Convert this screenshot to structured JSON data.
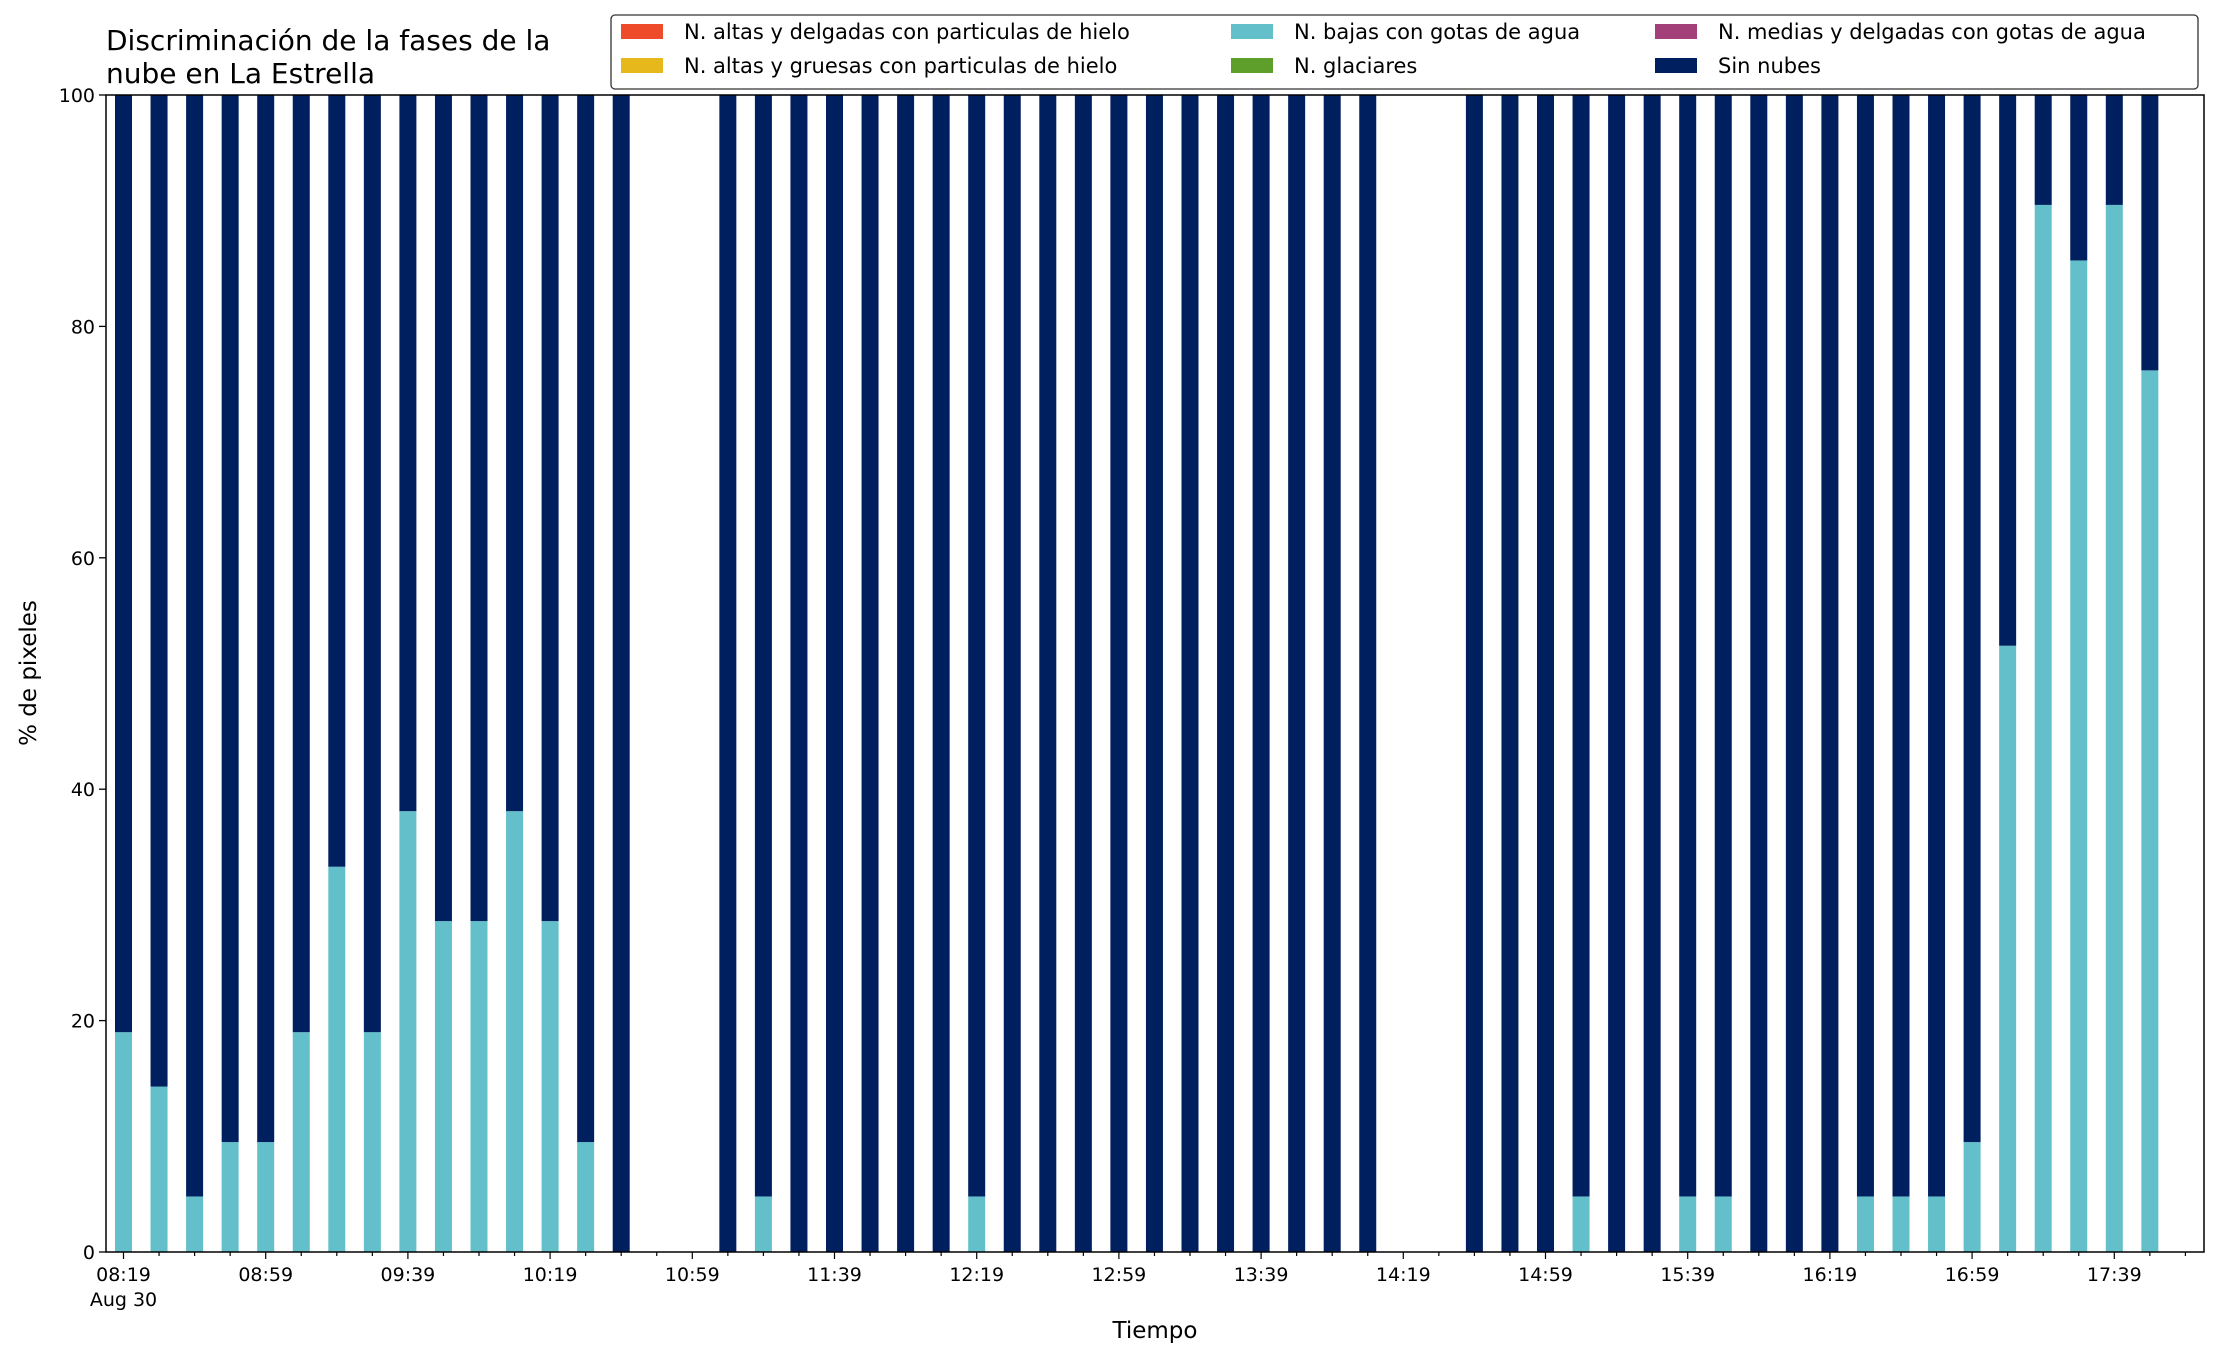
{
  "chart_data": {
    "type": "bar",
    "stacked": true,
    "title_lines": [
      "Discriminación de la fases de la",
      "nube en La Estrella"
    ],
    "xlabel": "Tiempo",
    "ylabel": "% de pixeles",
    "ylim": [
      0,
      100
    ],
    "y_ticks": [
      0,
      20,
      40,
      60,
      80,
      100
    ],
    "x_start": "08:19",
    "x_step_minutes": 10,
    "x_count": 58,
    "x_tick_labels": [
      "08:19",
      "08:59",
      "09:39",
      "10:19",
      "10:59",
      "11:39",
      "12:19",
      "12:59",
      "13:39",
      "14:19",
      "14:59",
      "15:39",
      "16:19",
      "16:59",
      "17:39"
    ],
    "x_tick_sublabel": "Aug 30",
    "grid": false,
    "legend_position": "top-right",
    "legend_columns": 3,
    "series": [
      {
        "name": "N. altas y delgadas con particulas de hielo",
        "color": "#ee4b2b",
        "values": [
          0,
          0,
          0,
          0,
          0,
          0,
          0,
          0,
          0,
          0,
          0,
          0,
          0,
          0,
          0,
          0,
          0,
          0,
          0,
          0,
          0,
          0,
          0,
          0,
          0,
          0,
          0,
          0,
          0,
          0,
          0,
          0,
          0,
          0,
          0,
          0,
          0,
          0,
          0,
          0,
          0,
          0,
          0,
          0,
          0,
          0,
          0,
          0,
          0,
          0,
          0,
          0,
          0,
          0,
          0,
          0,
          0,
          0
        ]
      },
      {
        "name": "N. altas y gruesas con particulas de hielo",
        "color": "#e6b81c",
        "values": [
          0,
          0,
          0,
          0,
          0,
          0,
          0,
          0,
          0,
          0,
          0,
          0,
          0,
          0,
          0,
          0,
          0,
          0,
          0,
          0,
          0,
          0,
          0,
          0,
          0,
          0,
          0,
          0,
          0,
          0,
          0,
          0,
          0,
          0,
          0,
          0,
          0,
          0,
          0,
          0,
          0,
          0,
          0,
          0,
          0,
          0,
          0,
          0,
          0,
          0,
          0,
          0,
          0,
          0,
          0,
          0,
          0,
          0
        ]
      },
      {
        "name": "N. bajas con gotas de agua",
        "color": "#63bfc9",
        "values": [
          19,
          14.3,
          4.8,
          9.5,
          9.5,
          19,
          33.3,
          19,
          38.1,
          28.6,
          28.6,
          38.1,
          28.6,
          9.5,
          0,
          0,
          0,
          0,
          4.8,
          0,
          0,
          0,
          0,
          0,
          4.8,
          0,
          0,
          0,
          0,
          0,
          0,
          0,
          0,
          0,
          0,
          0,
          0,
          0,
          0,
          0,
          0,
          4.8,
          0,
          0,
          4.8,
          4.8,
          0,
          0,
          0,
          4.8,
          4.8,
          4.8,
          9.5,
          52.4,
          90.5,
          85.7,
          90.5,
          76.2
        ]
      },
      {
        "name": "N. glaciares",
        "color": "#5e9e2a",
        "values": [
          0,
          0,
          0,
          0,
          0,
          0,
          0,
          0,
          0,
          0,
          0,
          0,
          0,
          0,
          0,
          0,
          0,
          0,
          0,
          0,
          0,
          0,
          0,
          0,
          0,
          0,
          0,
          0,
          0,
          0,
          0,
          0,
          0,
          0,
          0,
          0,
          0,
          0,
          0,
          0,
          0,
          0,
          0,
          0,
          0,
          0,
          0,
          0,
          0,
          0,
          0,
          0,
          0,
          0,
          0,
          0,
          0,
          0
        ]
      },
      {
        "name": "N. medias y delgadas con gotas de agua",
        "color": "#a3407a",
        "values": [
          0,
          0,
          0,
          0,
          0,
          0,
          0,
          0,
          0,
          0,
          0,
          0,
          0,
          0,
          0,
          0,
          0,
          0,
          0,
          0,
          0,
          0,
          0,
          0,
          0,
          0,
          0,
          0,
          0,
          0,
          0,
          0,
          0,
          0,
          0,
          0,
          0,
          0,
          0,
          0,
          0,
          0,
          0,
          0,
          0,
          0,
          0,
          0,
          0,
          0,
          0,
          0,
          0,
          0,
          0,
          0,
          0,
          0
        ]
      },
      {
        "name": "Sin nubes",
        "color": "#001f5f",
        "values": [
          81,
          85.7,
          95.2,
          90.5,
          90.5,
          81,
          66.7,
          81,
          61.9,
          71.4,
          71.4,
          61.9,
          71.4,
          90.5,
          100,
          0,
          0,
          100,
          95.2,
          100,
          100,
          100,
          100,
          100,
          95.2,
          100,
          100,
          100,
          100,
          100,
          100,
          100,
          100,
          100,
          100,
          100,
          0,
          0,
          100,
          100,
          100,
          95.2,
          100,
          100,
          95.2,
          95.2,
          100,
          100,
          100,
          95.2,
          95.2,
          95.2,
          90.5,
          47.6,
          9.5,
          14.3,
          9.5,
          23.8
        ]
      }
    ]
  }
}
